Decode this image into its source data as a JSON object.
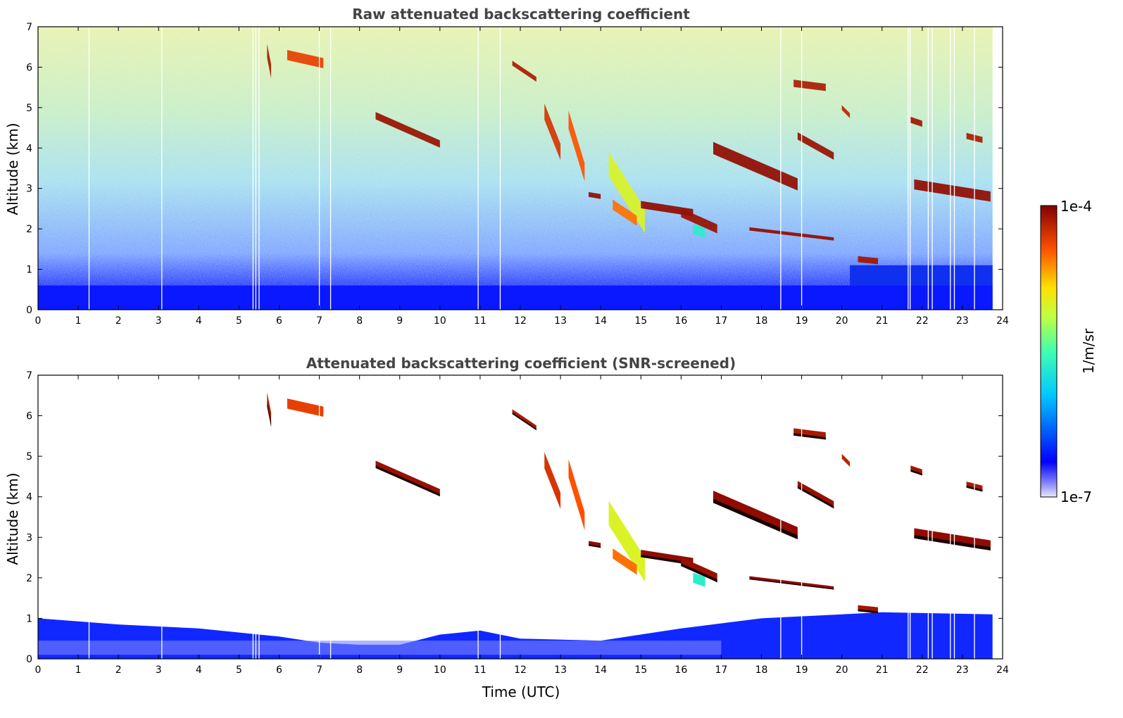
{
  "chart_data": [
    {
      "type": "heatmap",
      "title": "Raw attenuated backscattering coefficient",
      "xlabel": "",
      "ylabel": "Altitude (km)",
      "xlim": [
        0,
        24
      ],
      "ylim": [
        0,
        7
      ],
      "xticks": [
        "0",
        "1",
        "2",
        "3",
        "4",
        "5",
        "6",
        "7",
        "8",
        "9",
        "10",
        "11",
        "12",
        "13",
        "14",
        "15",
        "16",
        "17",
        "18",
        "19",
        "20",
        "21",
        "22",
        "23",
        "24"
      ],
      "yticks": [
        "0",
        "1",
        "2",
        "3",
        "4",
        "5",
        "6",
        "7"
      ],
      "colorscale": "jet-log",
      "features": [
        {
          "label": "boundary layer aerosol",
          "time": [
            0,
            23.75
          ],
          "altitude": [
            0,
            0.6
          ],
          "level": 0.12
        },
        {
          "label": "low cloud top",
          "time": [
            20.3,
            21.0
          ],
          "altitude": [
            1.15,
            1.3
          ],
          "level": 0.95
        },
        {
          "label": "ice cloud band",
          "time": [
            8.4,
            10.0
          ],
          "altitude": [
            4.1,
            4.8
          ],
          "level": 0.97
        },
        {
          "label": "cirrus fallstreak",
          "time": [
            12.6,
            13.6
          ],
          "altitude": [
            3.3,
            4.9
          ],
          "level": 0.88
        },
        {
          "label": "virga",
          "time": [
            14.0,
            15.3
          ],
          "altitude": [
            2.1,
            3.8
          ],
          "level": 0.6
        },
        {
          "label": "mid-level cloud",
          "time": [
            16.8,
            18.9
          ],
          "altitude": [
            2.9,
            4.2
          ],
          "level": 0.98
        },
        {
          "label": "high cloud",
          "time": [
            18.8,
            19.6
          ],
          "altitude": [
            5.4,
            5.7
          ],
          "level": 0.95
        }
      ]
    },
    {
      "type": "heatmap",
      "title": "Attenuated backscattering coefficient (SNR-screened)",
      "xlabel": "Time (UTC)",
      "ylabel": "Altitude (km)",
      "xlim": [
        0,
        24
      ],
      "ylim": [
        0,
        7
      ],
      "xticks": [
        "0",
        "1",
        "2",
        "3",
        "4",
        "5",
        "6",
        "7",
        "8",
        "9",
        "10",
        "11",
        "12",
        "13",
        "14",
        "15",
        "16",
        "17",
        "18",
        "19",
        "20",
        "21",
        "22",
        "23",
        "24"
      ],
      "yticks": [
        "0",
        "1",
        "2",
        "3",
        "4",
        "5",
        "6",
        "7"
      ],
      "colorscale": "jet-log"
    }
  ],
  "colorbar": {
    "label": "1/m/sr",
    "max_label": "1e-4",
    "min_label": "1e-7",
    "range": [
      1e-07,
      0.0001
    ]
  }
}
